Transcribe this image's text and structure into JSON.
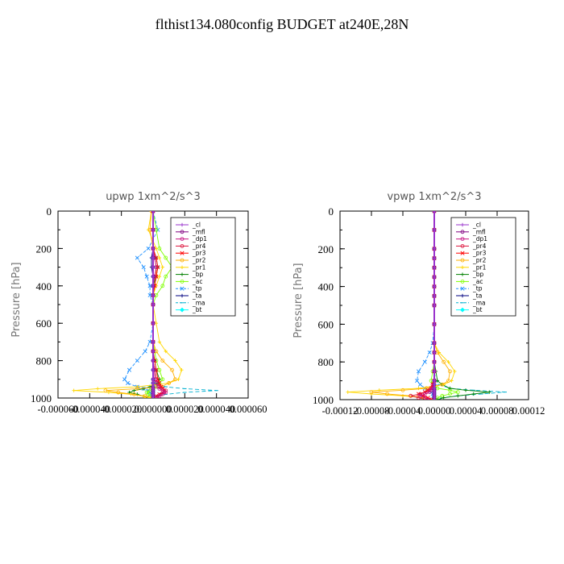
{
  "title": "flthist134.080config  BUDGET at240E,28N",
  "colors": {
    "_cl": "#9932cc",
    "_mfl": "#800080",
    "_dp1": "#c71585",
    "_pr4": "#dc143c",
    "_pr3": "#ff0000",
    "_pr2": "#ffb000",
    "_pr1": "#ffd700",
    "_bp": "#008000",
    "_ac": "#7fff00",
    "_tp": "#1e90ff",
    "_ta": "#000080",
    "_ma": "#00b0d0",
    "_bt": "#00ffff"
  },
  "chart_data": [
    {
      "type": "line",
      "title": "upwp   1xm^2/s^3",
      "ylabel": "Pressure [hPa]",
      "xlabel": "",
      "ylim": [
        1000,
        0
      ],
      "xlim": [
        -6e-05,
        6e-05
      ],
      "y_ticks": [
        "0",
        "200",
        "400",
        "600",
        "800",
        "1000"
      ],
      "x_tick_labels": [
        "-0.000060",
        "-0.000040",
        "-0.000020",
        "0.000000",
        "0.000020",
        "0.000040",
        "0.000060"
      ],
      "legend": {
        "placement": "top-right",
        "entries": [
          "_cl",
          "_mfl",
          "_dp1",
          "_pr4",
          "_pr3",
          "_pr2",
          "_pr1",
          "_bp",
          "_ac",
          "_tp",
          "_ta",
          "_ma",
          "_bt"
        ]
      },
      "y": [
        0,
        100,
        200,
        250,
        300,
        350,
        400,
        450,
        500,
        600,
        700,
        750,
        800,
        850,
        900,
        920,
        940,
        950,
        960,
        970,
        980,
        990,
        1000
      ],
      "series": [
        {
          "name": "_cl",
          "values": [
            0,
            0,
            0,
            0,
            0,
            0,
            0,
            0,
            0,
            0,
            0,
            0,
            0,
            0,
            0,
            0,
            0,
            0,
            0,
            0,
            0,
            0,
            0
          ]
        },
        {
          "name": "_mfl",
          "values": [
            0,
            0,
            0,
            0,
            0,
            0,
            0,
            0,
            0,
            0,
            0,
            0,
            0,
            0,
            0,
            0,
            0,
            0,
            0,
            0,
            0,
            0,
            0
          ]
        },
        {
          "name": "_dp1",
          "values": [
            0,
            0,
            0,
            1e-06,
            2e-06,
            1e-06,
            0,
            0,
            0,
            0,
            0,
            0,
            0,
            1e-06,
            1e-06,
            2e-06,
            3e-06,
            4e-06,
            6e-06,
            8e-06,
            6e-06,
            4e-06,
            2e-06
          ]
        },
        {
          "name": "_pr4",
          "values": [
            0,
            0,
            0,
            1e-06,
            2e-06,
            1e-06,
            0,
            0,
            0,
            0,
            0,
            0,
            0,
            1e-06,
            2e-06,
            3e-06,
            4e-06,
            6e-06,
            8e-06,
            7e-06,
            5e-06,
            3e-06,
            2e-06
          ]
        },
        {
          "name": "_pr3",
          "values": [
            0,
            0,
            0,
            2e-06,
            3e-06,
            2e-06,
            1e-06,
            0,
            0,
            0,
            0,
            0,
            1e-06,
            2e-06,
            3e-06,
            4e-06,
            5e-06,
            6e-06,
            7e-06,
            6e-06,
            4e-06,
            2e-06,
            1e-06
          ]
        },
        {
          "name": "_pr2",
          "values": [
            -1e-06,
            -2e-06,
            0,
            1e-06,
            2e-06,
            2e-06,
            1e-06,
            0,
            0,
            0,
            0,
            2e-06,
            6e-06,
            1.2e-05,
            1.4e-05,
            1e-05,
            5e-06,
            -1e-05,
            -3e-05,
            -2.2e-05,
            -1.2e-05,
            -5e-06,
            0
          ]
        },
        {
          "name": "_pr1",
          "values": [
            -1e-06,
            -3e-06,
            2e-06,
            4e-06,
            6e-06,
            4e-06,
            2e-06,
            0,
            0,
            2e-06,
            4e-06,
            8e-06,
            1.4e-05,
            1.8e-05,
            1.6e-05,
            1e-05,
            -1e-05,
            -3.5e-05,
            -5e-05,
            -2.8e-05,
            -1.4e-05,
            -6e-06,
            -2e-06
          ]
        },
        {
          "name": "_bp",
          "values": [
            0,
            0,
            0,
            2e-06,
            3e-06,
            2e-06,
            0,
            0,
            0,
            0,
            0,
            0,
            1e-06,
            2e-06,
            4e-06,
            3e-06,
            -2e-06,
            -6e-06,
            -1.2e-05,
            -1.5e-05,
            -1e-05,
            -6e-06,
            -3e-06
          ]
        },
        {
          "name": "_ac",
          "values": [
            0,
            2e-06,
            4e-06,
            8e-06,
            1.2e-05,
            8e-06,
            6e-06,
            2e-06,
            0,
            0,
            0,
            1e-06,
            2e-06,
            4e-06,
            6e-06,
            4e-06,
            2e-06,
            0,
            -2e-06,
            -4e-06,
            -3e-06,
            -2e-06,
            -1e-06
          ]
        },
        {
          "name": "_tp",
          "values": [
            0,
            3e-06,
            -3e-06,
            -1e-05,
            -6e-06,
            -4e-06,
            -2e-06,
            -2e-06,
            0,
            0,
            -2e-06,
            -5e-06,
            -1e-05,
            -1.5e-05,
            -1.8e-05,
            -1.6e-05,
            -1e-05,
            -6e-06,
            -3e-06,
            -2e-06,
            -1e-06,
            0,
            0
          ]
        },
        {
          "name": "_ta",
          "values": [
            0,
            0,
            0,
            -1e-06,
            -1e-06,
            0,
            0,
            0,
            0,
            0,
            0,
            0,
            0,
            0,
            0,
            0,
            0,
            0,
            0,
            0,
            0,
            0,
            0
          ]
        },
        {
          "name": "_ma",
          "values": [
            0,
            0,
            0,
            0,
            0,
            0,
            0,
            0,
            0,
            0,
            0,
            0,
            0,
            0,
            0,
            2e-06,
            8e-06,
            2e-05,
            4e-05,
            2e-05,
            8e-06,
            3e-06,
            1e-06
          ]
        },
        {
          "name": "_bt",
          "values": [
            0,
            0,
            0,
            0,
            0,
            0,
            0,
            0,
            0,
            0,
            0,
            0,
            0,
            0,
            0,
            0,
            0,
            0,
            0,
            0,
            0,
            0,
            0
          ]
        }
      ]
    },
    {
      "type": "line",
      "title": "vpwp   1xm^2/s^3",
      "ylabel": "Pressure [hPa]",
      "xlabel": "",
      "ylim": [
        1000,
        0
      ],
      "xlim": [
        -0.00012,
        0.00012
      ],
      "y_ticks": [
        "0",
        "200",
        "400",
        "600",
        "800",
        "1000"
      ],
      "x_tick_labels": [
        "-0.00012",
        "-0.00008",
        "-0.00004",
        "0.00000",
        "0.00004",
        "0.00008",
        "0.00012"
      ],
      "legend": {
        "placement": "top-right",
        "entries": [
          "_cl",
          "_mfl",
          "_dp1",
          "_pr4",
          "_pr3",
          "_pr2",
          "_pr1",
          "_bp",
          "_ac",
          "_tp",
          "_ta",
          "_ma",
          "_bt"
        ]
      },
      "y": [
        0,
        100,
        200,
        250,
        300,
        350,
        400,
        450,
        500,
        600,
        700,
        750,
        800,
        850,
        900,
        920,
        940,
        950,
        960,
        970,
        980,
        990,
        1000
      ],
      "series": [
        {
          "name": "_cl",
          "values": [
            0,
            0,
            0,
            0,
            0,
            0,
            0,
            0,
            0,
            0,
            0,
            0,
            0,
            0,
            0,
            0,
            0,
            0,
            0,
            0,
            0,
            0,
            0
          ]
        },
        {
          "name": "_mfl",
          "values": [
            0,
            0,
            0,
            0,
            0,
            0,
            0,
            0,
            0,
            0,
            0,
            0,
            0,
            0,
            0,
            0,
            0,
            0,
            0,
            0,
            0,
            0,
            0
          ]
        },
        {
          "name": "_dp1",
          "values": [
            0,
            0,
            0,
            0,
            0,
            0,
            0,
            0,
            0,
            0,
            0,
            0,
            0,
            0,
            0,
            0,
            -2e-06,
            -4e-06,
            -6e-06,
            -1.2e-05,
            -1.8e-05,
            -1.2e-05,
            -6e-06
          ]
        },
        {
          "name": "_pr4",
          "values": [
            0,
            0,
            0,
            0,
            0,
            0,
            0,
            0,
            0,
            0,
            0,
            0,
            0,
            0,
            0,
            -2e-06,
            -4e-06,
            -6e-06,
            -1e-05,
            -1.8e-05,
            -3e-05,
            -2e-05,
            -1e-05
          ]
        },
        {
          "name": "_pr3",
          "values": [
            0,
            0,
            0,
            0,
            0,
            0,
            0,
            0,
            0,
            0,
            0,
            0,
            0,
            0,
            0,
            -2e-06,
            -4e-06,
            -8e-06,
            -1.2e-05,
            -2e-05,
            -1.4e-05,
            -8e-06,
            -4e-06
          ]
        },
        {
          "name": "_pr2",
          "values": [
            0,
            0,
            0,
            0,
            0,
            0,
            0,
            0,
            0,
            0,
            0,
            4e-06,
            1.2e-05,
            2e-05,
            1.8e-05,
            1e-05,
            -1e-05,
            -4e-05,
            -8e-05,
            -6e-05,
            -3e-05,
            -1.2e-05,
            -4e-06
          ]
        },
        {
          "name": "_pr1",
          "values": [
            0,
            0,
            0,
            0,
            0,
            0,
            0,
            0,
            0,
            0,
            0,
            6e-06,
            1.8e-05,
            2.6e-05,
            2.2e-05,
            1.2e-05,
            -2e-05,
            -7e-05,
            -0.00011,
            -8e-05,
            -4e-05,
            -1.5e-05,
            -5e-06
          ]
        },
        {
          "name": "_bp",
          "values": [
            0,
            0,
            0,
            0,
            0,
            0,
            0,
            0,
            0,
            0,
            0,
            0,
            0,
            2e-06,
            4e-06,
            1e-05,
            2e-05,
            4e-05,
            7e-05,
            5e-05,
            3e-05,
            1.2e-05,
            4e-06
          ]
        },
        {
          "name": "_ac",
          "values": [
            0,
            0,
            0,
            0,
            0,
            0,
            0,
            0,
            0,
            0,
            0,
            0,
            0,
            -2e-06,
            -4e-06,
            -2e-06,
            4e-06,
            2e-05,
            3e-05,
            2e-05,
            1e-05,
            4e-06,
            2e-06
          ]
        },
        {
          "name": "_tp",
          "values": [
            0,
            0,
            0,
            0,
            0,
            0,
            0,
            0,
            0,
            0,
            -2e-06,
            -6e-06,
            -1.2e-05,
            -2e-05,
            -2.2e-05,
            -1.8e-05,
            -1.2e-05,
            -8e-06,
            -4e-06,
            -2e-06,
            -1e-06,
            0,
            0
          ]
        },
        {
          "name": "_ta",
          "values": [
            0,
            0,
            0,
            0,
            0,
            0,
            0,
            0,
            0,
            0,
            0,
            0,
            0,
            0,
            0,
            0,
            0,
            0,
            0,
            0,
            0,
            0,
            0
          ]
        },
        {
          "name": "_ma",
          "values": [
            0,
            0,
            0,
            0,
            0,
            0,
            0,
            0,
            0,
            0,
            0,
            0,
            0,
            0,
            2e-06,
            6e-06,
            2e-05,
            5e-05,
            9e-05,
            6e-05,
            3e-05,
            1e-05,
            4e-06
          ]
        },
        {
          "name": "_bt",
          "values": [
            0,
            0,
            0,
            0,
            0,
            0,
            0,
            0,
            0,
            0,
            0,
            0,
            0,
            0,
            0,
            0,
            0,
            0,
            0,
            0,
            0,
            0,
            0
          ]
        }
      ]
    }
  ]
}
